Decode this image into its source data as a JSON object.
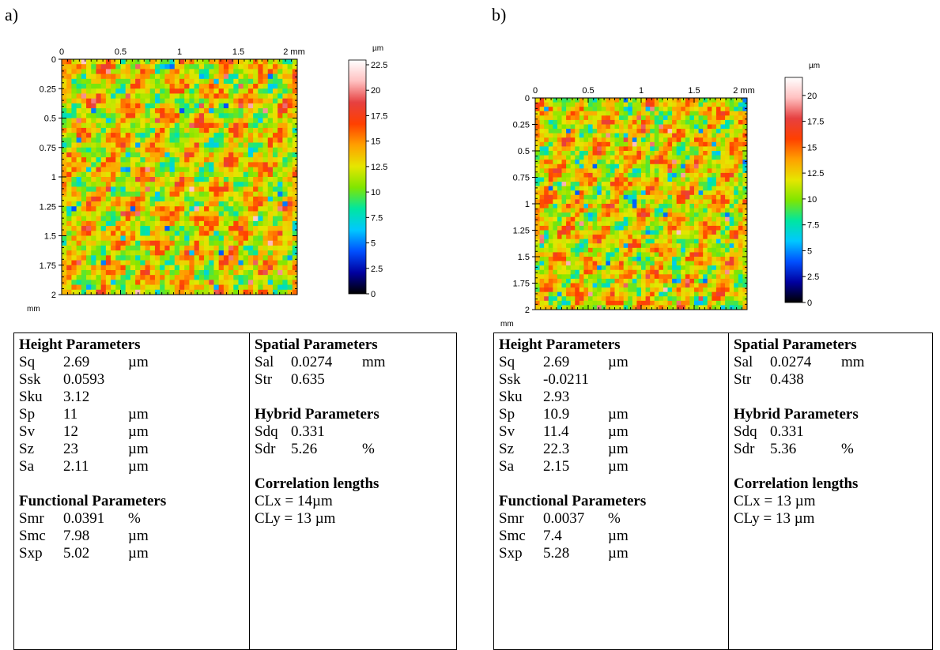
{
  "panels": [
    {
      "label": "a)",
      "x_ticks": [
        "0",
        "0.5",
        "1",
        "1.5",
        "2 mm"
      ],
      "y_ticks": [
        "0",
        "0.25",
        "0.5",
        "0.75",
        "1",
        "1.25",
        "1.5",
        "1.75",
        "2"
      ],
      "axis_unit": "mm",
      "scale_unit": "µm",
      "scale_ticks": [
        "22.5",
        "20",
        "17.5",
        "15",
        "12.5",
        "10",
        "7.5",
        "5",
        "2.5",
        "0"
      ],
      "height_title": "Height Parameters",
      "height": [
        {
          "name": "Sq",
          "value": "2.69",
          "unit": "µm"
        },
        {
          "name": "Ssk",
          "value": "0.0593",
          "unit": ""
        },
        {
          "name": "Sku",
          "value": "3.12",
          "unit": ""
        },
        {
          "name": "Sp",
          "value": "11",
          "unit": "µm"
        },
        {
          "name": "Sv",
          "value": "12",
          "unit": "µm"
        },
        {
          "name": "Sz",
          "value": "23",
          "unit": "µm"
        },
        {
          "name": "Sa",
          "value": "2.11",
          "unit": "µm"
        }
      ],
      "functional_title": "Functional Parameters",
      "functional": [
        {
          "name": "Smr",
          "value": "0.0391",
          "unit": "%"
        },
        {
          "name": "Smc",
          "value": "7.98",
          "unit": "µm"
        },
        {
          "name": "Sxp",
          "value": "5.02",
          "unit": "µm"
        }
      ],
      "spatial_title": "Spatial Parameters",
      "spatial": [
        {
          "name": "Sal",
          "value": "0.0274",
          "unit": "mm"
        },
        {
          "name": "Str",
          "value": "0.635",
          "unit": ""
        }
      ],
      "hybrid_title": "Hybrid Parameters",
      "hybrid": [
        {
          "name": "Sdq",
          "value": "0.331",
          "unit": ""
        },
        {
          "name": "Sdr",
          "value": "5.26",
          "unit": "%"
        }
      ],
      "corr_title": "Correlation lengths",
      "corr": [
        "CLx = 14µm",
        "CLy = 13 µm"
      ]
    },
    {
      "label": "b)",
      "x_ticks": [
        "0",
        "0.5",
        "1",
        "1.5",
        "2 mm"
      ],
      "y_ticks": [
        "0",
        "0.25",
        "0.5",
        "0.75",
        "1",
        "1.25",
        "1.5",
        "1.75",
        "2"
      ],
      "axis_unit": "mm",
      "scale_unit": "µm",
      "scale_ticks": [
        "20",
        "17.5",
        "15",
        "12.5",
        "10",
        "7.5",
        "5",
        "2.5",
        "0"
      ],
      "height_title": "Height Parameters",
      "height": [
        {
          "name": "Sq",
          "value": "2.69",
          "unit": "µm"
        },
        {
          "name": "Ssk",
          "value": "-0.0211",
          "unit": ""
        },
        {
          "name": "Sku",
          "value": "2.93",
          "unit": ""
        },
        {
          "name": "Sp",
          "value": "10.9",
          "unit": "µm"
        },
        {
          "name": "Sv",
          "value": "11.4",
          "unit": "µm"
        },
        {
          "name": "Sz",
          "value": "22.3",
          "unit": "µm"
        },
        {
          "name": "Sa",
          "value": "2.15",
          "unit": "µm"
        }
      ],
      "functional_title": "Functional Parameters",
      "functional": [
        {
          "name": "Smr",
          "value": "0.0037",
          "unit": "%"
        },
        {
          "name": "Smc",
          "value": "7.4",
          "unit": "µm"
        },
        {
          "name": "Sxp",
          "value": "5.28",
          "unit": "µm"
        }
      ],
      "spatial_title": "Spatial Parameters",
      "spatial": [
        {
          "name": "Sal",
          "value": "0.0274",
          "unit": "mm"
        },
        {
          "name": "Str",
          "value": "0.438",
          "unit": ""
        }
      ],
      "hybrid_title": "Hybrid Parameters",
      "hybrid": [
        {
          "name": "Sdq",
          "value": "0.331",
          "unit": ""
        },
        {
          "name": "Sdr",
          "value": "5.36",
          "unit": "%"
        }
      ],
      "corr_title": "Correlation lengths",
      "corr": [
        "CLx = 13 µm",
        "CLy = 13 µm"
      ]
    }
  ],
  "colors": {
    "colormap": [
      "#000000",
      "#0000a0",
      "#0050ff",
      "#00c8ff",
      "#00e6a0",
      "#80e600",
      "#e6e600",
      "#ffa000",
      "#ff4000",
      "#e64040",
      "#ffc0c0",
      "#ffffff"
    ],
    "border": "#000000"
  }
}
